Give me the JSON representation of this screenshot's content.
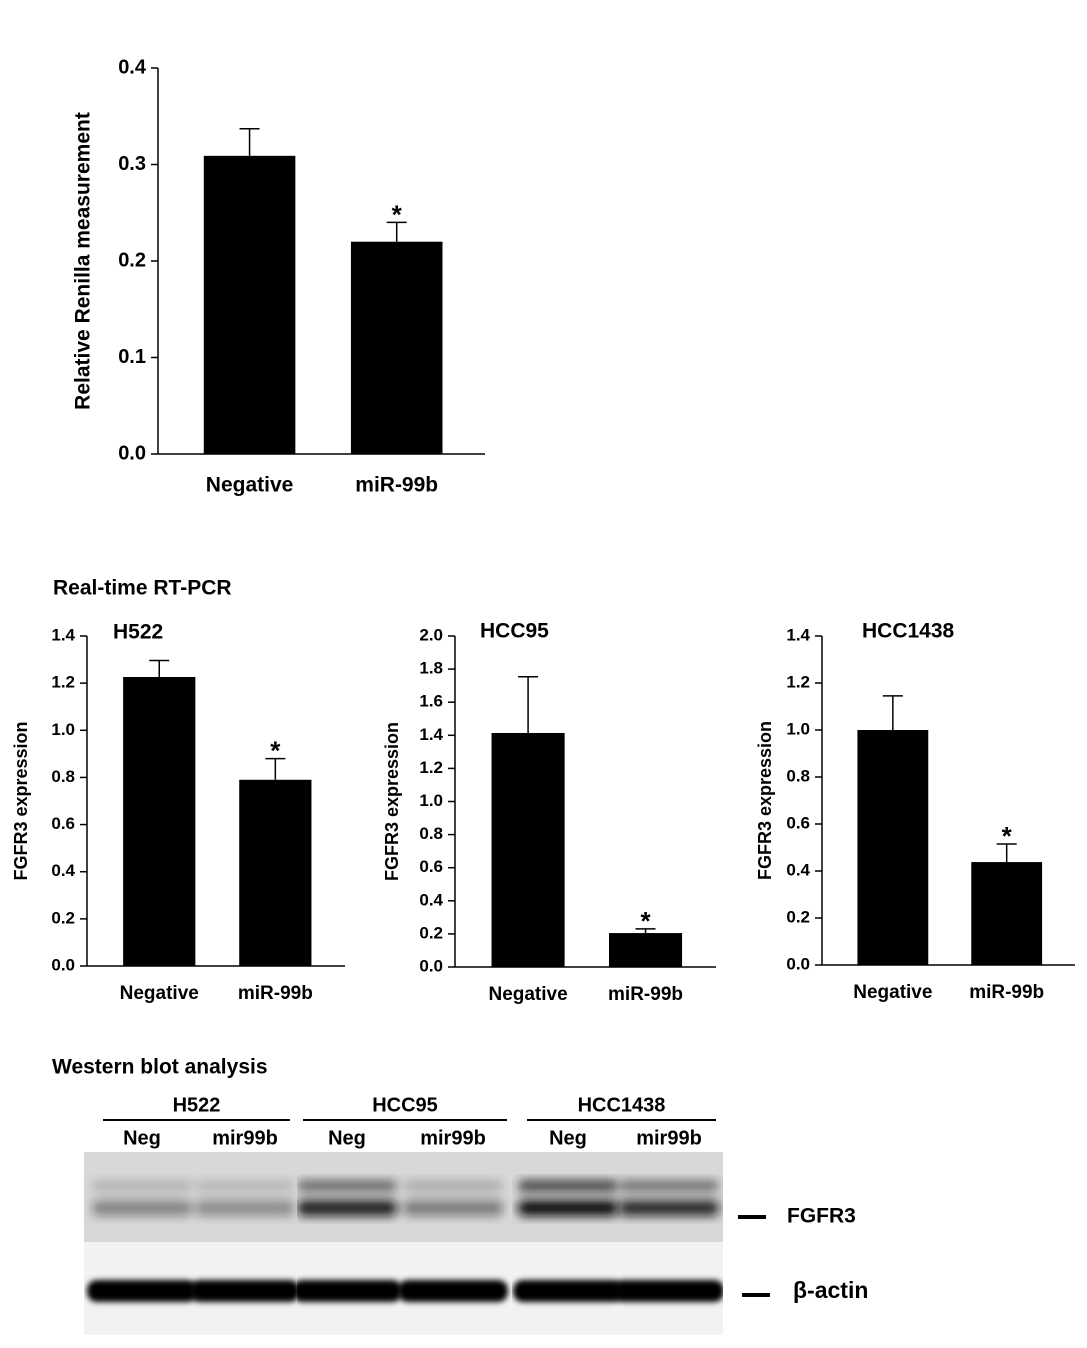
{
  "chart_data": [
    {
      "type": "bar",
      "ylabel": "Relative Renilla measurement",
      "categories": [
        "Negative",
        "miR-99b"
      ],
      "values": [
        0.309,
        0.22
      ],
      "errors": [
        0.028,
        0.02
      ],
      "markers": [
        null,
        "*"
      ],
      "color": "#000000",
      "ylim": [
        0,
        0.4
      ],
      "yticks": [
        {
          "value": 0,
          "label": "0.0"
        },
        0.1,
        0.2,
        0.3,
        0.4
      ]
    },
    {
      "type": "bar",
      "title": "H522",
      "ylabel": "FGFR3 expression",
      "categories": [
        "Negative",
        "miR-99b"
      ],
      "values": [
        1.226,
        0.79
      ],
      "errors": [
        0.07,
        0.09
      ],
      "markers": [
        null,
        "*"
      ],
      "color": "#000000",
      "ylim": [
        0,
        1.4
      ],
      "yticks": [
        {
          "value": 0,
          "label": "0.0"
        },
        0.2,
        0.4,
        0.6,
        0.8,
        {
          "value": 1,
          "label": "1.0"
        },
        1.2,
        1.4
      ]
    },
    {
      "type": "bar",
      "title": "HCC95",
      "ylabel": "FGFR3 expression",
      "categories": [
        "Negative",
        "miR-99b"
      ],
      "values": [
        1.414,
        0.205
      ],
      "errors": [
        0.34,
        0.025
      ],
      "markers": [
        null,
        "*"
      ],
      "color": "#000000",
      "ylim": [
        0,
        2
      ],
      "yticks": [
        {
          "value": 0,
          "label": "0.0"
        },
        0.2,
        0.4,
        0.6,
        0.8,
        {
          "value": 1,
          "label": "1.0"
        },
        1.2,
        1.4,
        1.6,
        1.8,
        {
          "value": 2,
          "label": "2.0"
        }
      ]
    },
    {
      "type": "bar",
      "title": "HCC1438",
      "ylabel": "FGFR3 expression",
      "categories": [
        "Negative",
        "miR-99b"
      ],
      "values": [
        1.0,
        0.438
      ],
      "errors": [
        0.145,
        0.077
      ],
      "markers": [
        null,
        "*"
      ],
      "color": "#000000",
      "ylim": [
        0,
        1.4
      ],
      "yticks": [
        {
          "value": 0,
          "label": "0.0"
        },
        0.2,
        0.4,
        0.6,
        0.8,
        {
          "value": 1,
          "label": "1.0"
        },
        1.2,
        1.4
      ]
    }
  ],
  "figure": {
    "rtpcr_heading": "Real-time RT-PCR",
    "western_heading": "Western blot analysis"
  },
  "western_blot": {
    "groups": [
      {
        "name": "H522",
        "lanes": [
          "Neg",
          "mir99b"
        ]
      },
      {
        "name": "HCC95",
        "lanes": [
          "Neg",
          "mir99b"
        ]
      },
      {
        "name": "HCC1438",
        "lanes": [
          "Neg",
          "mir99b"
        ]
      }
    ],
    "bands": [
      "FGFR3",
      "β-actin"
    ]
  }
}
